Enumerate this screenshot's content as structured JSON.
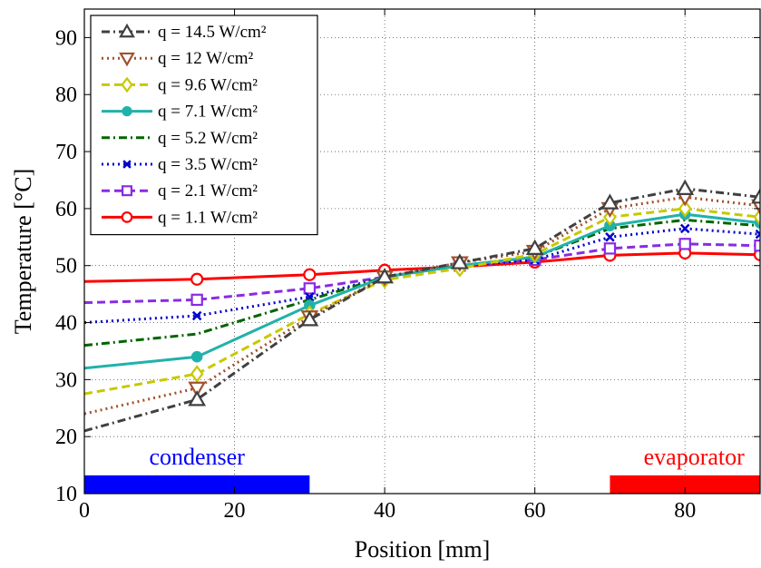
{
  "chart_data": {
    "type": "line",
    "title": "",
    "xlabel": "Position [mm]",
    "ylabel": "Temperature [°C]",
    "xlim": [
      0,
      90
    ],
    "ylim": [
      10,
      95
    ],
    "xticks": [
      0,
      20,
      40,
      60,
      80
    ],
    "yticks": [
      10,
      20,
      30,
      40,
      50,
      60,
      70,
      80,
      90
    ],
    "grid": true,
    "legend_position": "top-left",
    "x": [
      0,
      15,
      30,
      40,
      50,
      60,
      70,
      80,
      90
    ],
    "series": [
      {
        "name": "q = 14.5 W/cm²",
        "color": "#404040",
        "line": "dashdot",
        "marker": "triangle-up",
        "values": [
          21,
          26.5,
          40.5,
          48,
          50.5,
          53,
          61,
          63.5,
          62
        ]
      },
      {
        "name": "q = 12 W/cm²",
        "color": "#a0522d",
        "line": "dotted",
        "marker": "triangle-down",
        "values": [
          24,
          28.5,
          41,
          48,
          50.5,
          52.5,
          60,
          62,
          60.5
        ]
      },
      {
        "name": "q = 9.6 W/cm²",
        "color": "#c8c800",
        "line": "dashed",
        "marker": "diamond",
        "values": [
          27.5,
          31,
          41.5,
          47.5,
          49.5,
          52,
          58.5,
          60,
          58.5
        ]
      },
      {
        "name": "q = 7.1 W/cm²",
        "color": "#20b2aa",
        "line": "solid",
        "marker": "circle-filled",
        "values": [
          32,
          34,
          43,
          48,
          50,
          51.5,
          57,
          59,
          57.5
        ]
      },
      {
        "name": "q = 5.2 W/cm²",
        "color": "#006400",
        "line": "dashdot",
        "marker": "none",
        "values": [
          36,
          38,
          44,
          48,
          50,
          51.5,
          56.5,
          58,
          57
        ]
      },
      {
        "name": "q = 3.5 W/cm²",
        "color": "#0000cd",
        "line": "dotted",
        "marker": "x",
        "values": [
          40,
          41.2,
          44.5,
          48,
          50,
          51,
          55,
          56.5,
          55.5
        ]
      },
      {
        "name": "q = 2.1 W/cm²",
        "color": "#8a2be2",
        "line": "dashed",
        "marker": "square",
        "values": [
          43.5,
          44,
          46,
          48,
          50,
          51,
          53,
          53.8,
          53.5
        ]
      },
      {
        "name": "q = 1.1 W/cm²",
        "color": "#ff0000",
        "line": "solid",
        "marker": "circle-open",
        "values": [
          47.2,
          47.6,
          48.4,
          49.2,
          49.8,
          50.6,
          51.8,
          52.2,
          51.9
        ]
      }
    ],
    "regions": [
      {
        "label": "condenser",
        "color": "#0000ff",
        "x_range": [
          0,
          30
        ]
      },
      {
        "label": "evaporator",
        "color": "#ff0000",
        "x_range": [
          70,
          90
        ]
      }
    ]
  }
}
